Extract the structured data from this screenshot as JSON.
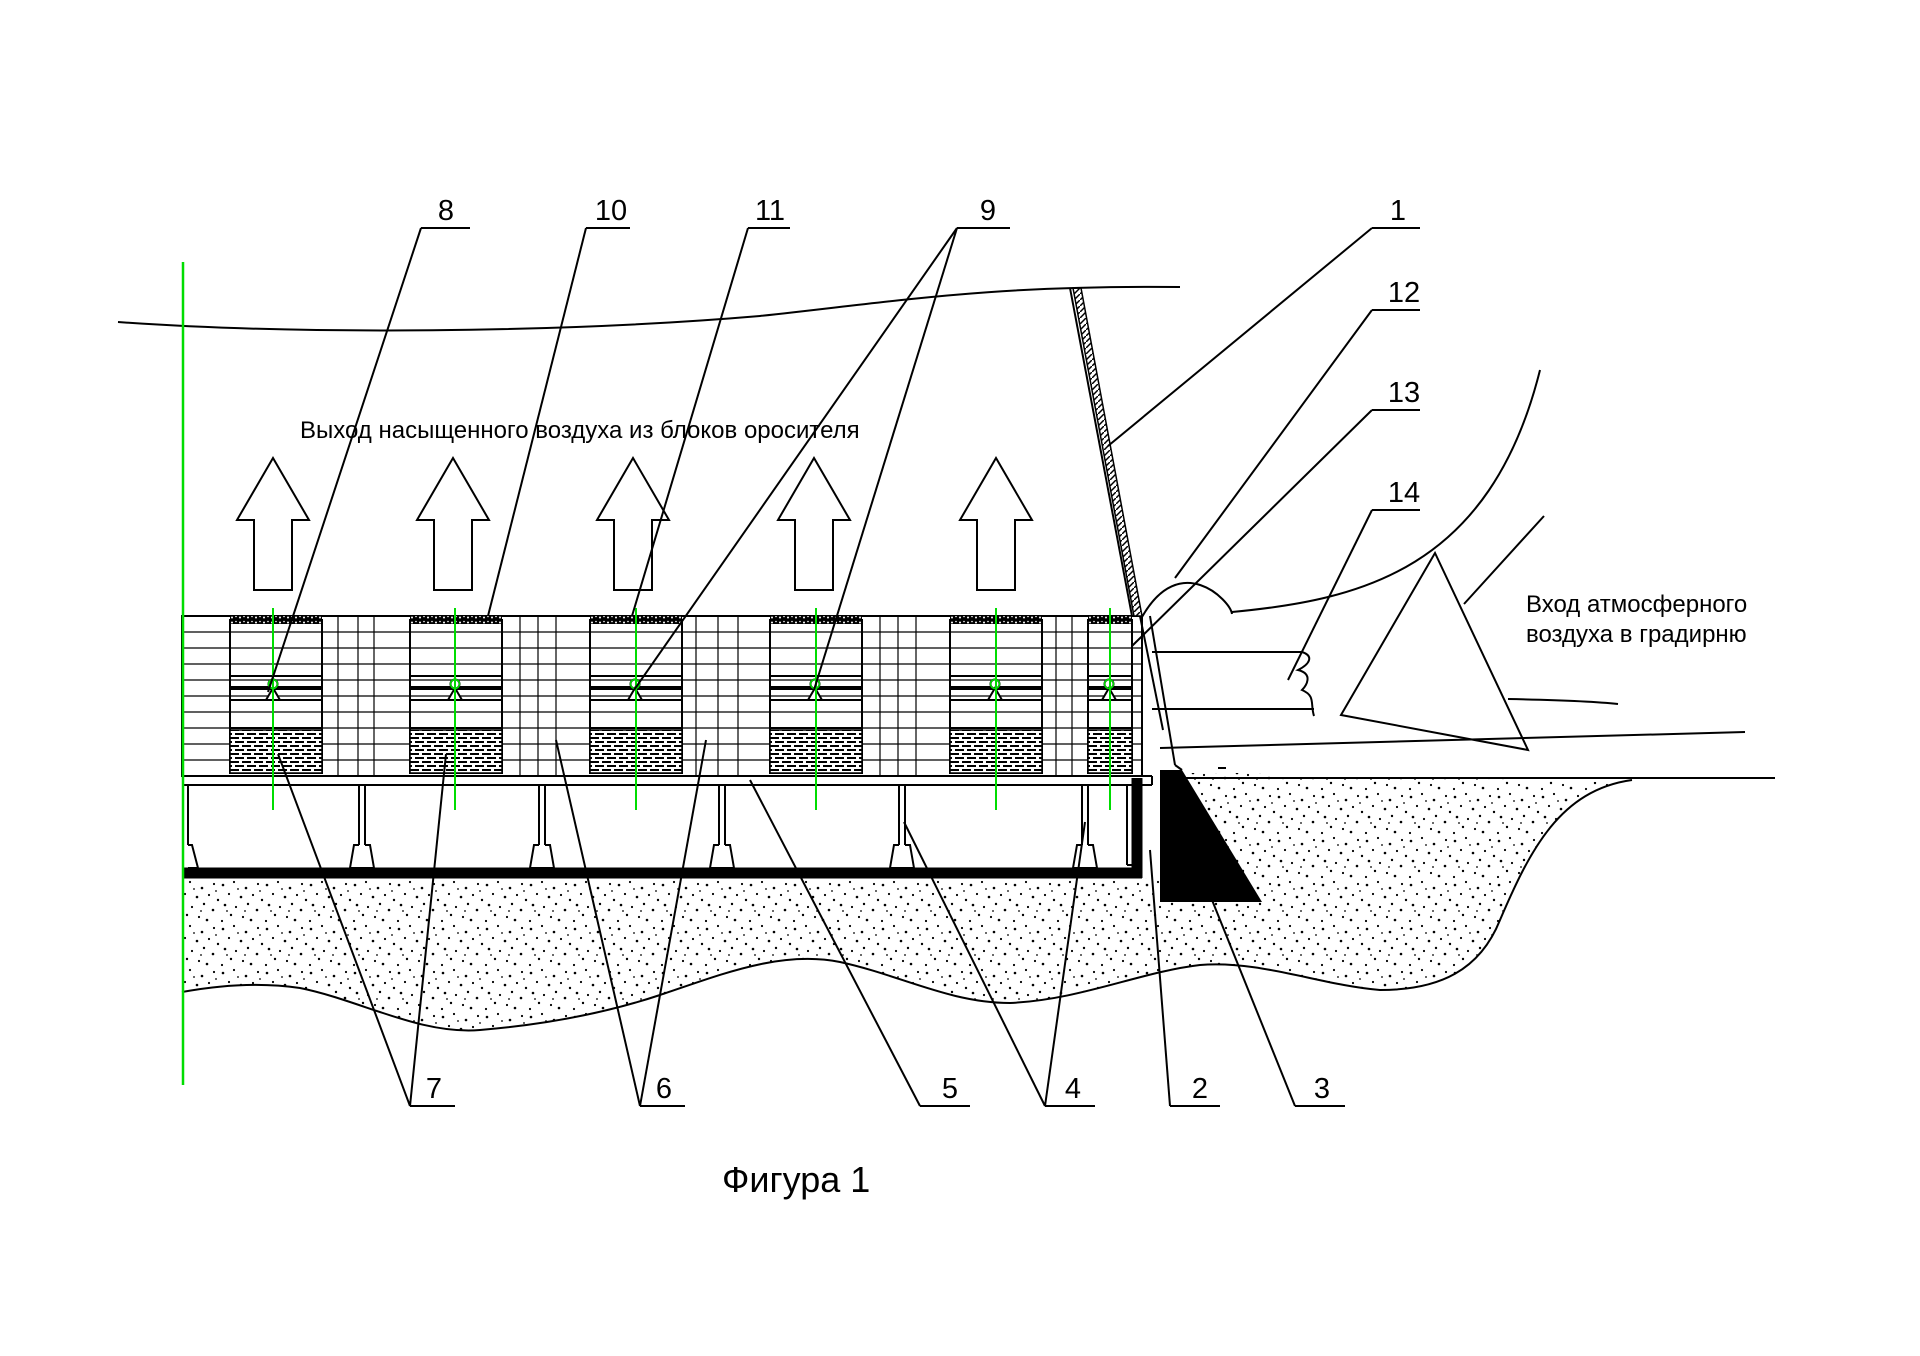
{
  "figure": {
    "caption": "Фигура 1",
    "annotations": {
      "air_out": "Выход насыщенного воздуха из блоков оросителя",
      "air_in_line1": "Вход атмосферного",
      "air_in_line2": "воздуха в градирню"
    },
    "callouts": [
      {
        "id": "1",
        "text": "1"
      },
      {
        "id": "2",
        "text": "2"
      },
      {
        "id": "3",
        "text": "3"
      },
      {
        "id": "4",
        "text": "4"
      },
      {
        "id": "5",
        "text": "5"
      },
      {
        "id": "6",
        "text": "6"
      },
      {
        "id": "7",
        "text": "7"
      },
      {
        "id": "8",
        "text": "8"
      },
      {
        "id": "9",
        "text": "9"
      },
      {
        "id": "10",
        "text": "10"
      },
      {
        "id": "11",
        "text": "11"
      },
      {
        "id": "12",
        "text": "12"
      },
      {
        "id": "13",
        "text": "13"
      },
      {
        "id": "14",
        "text": "14"
      }
    ],
    "colors": {
      "line": "#000000",
      "axis": "#00dd00",
      "background": "#ffffff"
    }
  }
}
